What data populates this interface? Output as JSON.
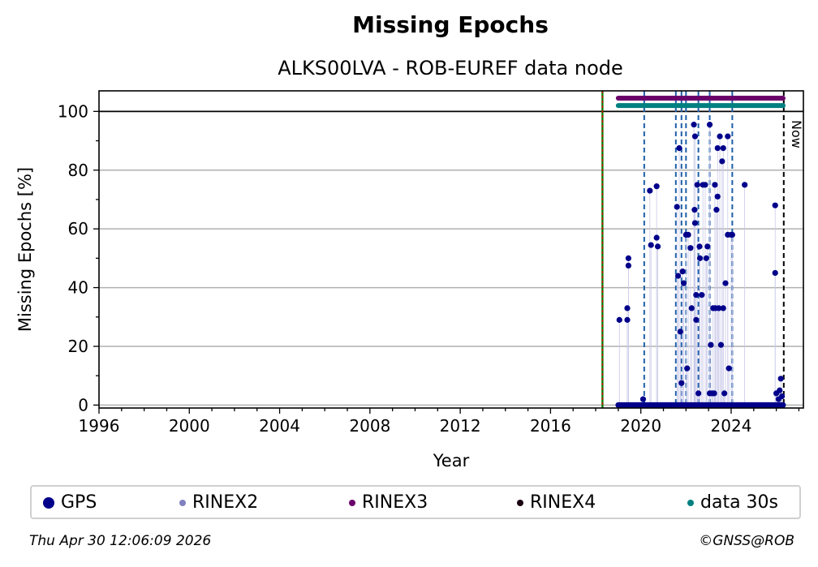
{
  "title": "Missing Epochs",
  "subtitle": "ALKS00LVA - ROB-EUREF data node",
  "footer": {
    "timestamp": "Thu Apr 30 12:06:09 2026",
    "copyright": "©GNSS@ROB"
  },
  "now_label": "Now",
  "legend": [
    {
      "label": "GPS",
      "color": "#00008b"
    },
    {
      "label": "RINEX2",
      "color": "#8080c0"
    },
    {
      "label": "RINEX3",
      "color": "#6b006b"
    },
    {
      "label": "RINEX4",
      "color": "#1a0010"
    },
    {
      "label": "data 30s",
      "color": "#008080"
    }
  ],
  "chart_data": {
    "type": "scatter",
    "title": "Missing Epochs",
    "subtitle": "ALKS00LVA - ROB-EUREF data node",
    "xlabel": "Year",
    "ylabel": "Missing Epochs [%]",
    "xlim": [
      1996,
      2027.2
    ],
    "ylim": [
      -1,
      107
    ],
    "xticks": [
      1996,
      2000,
      2004,
      2008,
      2012,
      2016,
      2020,
      2024
    ],
    "yticks": [
      0,
      20,
      40,
      60,
      80,
      100
    ],
    "grid": "y",
    "legend_position": "bottom",
    "reference_line_y": 100,
    "station_install_year": 2018.3,
    "now_year": 2026.33,
    "equipment_change_years": [
      2020.15,
      2021.55,
      2021.8,
      2022.0,
      2022.55,
      2023.05,
      2024.05
    ],
    "bars": [
      {
        "name": "RINEX3",
        "color": "#6b006b",
        "y": 104.5,
        "x_start": 2019.0,
        "x_end": 2026.3
      },
      {
        "name": "data 30s",
        "color": "#008080",
        "y": 102,
        "x_start": 2019.0,
        "x_end": 2026.3
      }
    ],
    "series": [
      {
        "name": "GPS",
        "color": "#00008b",
        "baseline": {
          "y": 0,
          "x_start": 2019.0,
          "x_end": 2026.3
        },
        "points": [
          [
            2019.05,
            29
          ],
          [
            2019.4,
            29
          ],
          [
            2019.4,
            33
          ],
          [
            2019.45,
            50
          ],
          [
            2019.45,
            47.5
          ],
          [
            2020.1,
            2
          ],
          [
            2020.4,
            73
          ],
          [
            2020.45,
            54.5
          ],
          [
            2020.7,
            74.5
          ],
          [
            2020.7,
            57
          ],
          [
            2020.75,
            54
          ],
          [
            2021.6,
            67.5
          ],
          [
            2021.65,
            44
          ],
          [
            2021.7,
            87.5
          ],
          [
            2021.75,
            25
          ],
          [
            2021.8,
            7.5
          ],
          [
            2021.85,
            45.5
          ],
          [
            2021.9,
            41.5
          ],
          [
            2022.0,
            58
          ],
          [
            2022.05,
            12.5
          ],
          [
            2022.1,
            58
          ],
          [
            2022.2,
            53.5
          ],
          [
            2022.25,
            33
          ],
          [
            2022.35,
            95.5
          ],
          [
            2022.38,
            66.5
          ],
          [
            2022.4,
            62
          ],
          [
            2022.4,
            91.5
          ],
          [
            2022.45,
            37.5
          ],
          [
            2022.45,
            29
          ],
          [
            2022.5,
            75
          ],
          [
            2022.55,
            4
          ],
          [
            2022.6,
            54
          ],
          [
            2022.62,
            50
          ],
          [
            2022.7,
            37.5
          ],
          [
            2022.75,
            75
          ],
          [
            2022.85,
            75
          ],
          [
            2022.9,
            50
          ],
          [
            2022.95,
            54
          ],
          [
            2023.05,
            4
          ],
          [
            2023.05,
            95.5
          ],
          [
            2023.1,
            20.5
          ],
          [
            2023.15,
            4
          ],
          [
            2023.2,
            33
          ],
          [
            2023.25,
            4
          ],
          [
            2023.28,
            75
          ],
          [
            2023.3,
            33
          ],
          [
            2023.35,
            66.5
          ],
          [
            2023.4,
            71
          ],
          [
            2023.4,
            87.5
          ],
          [
            2023.45,
            33
          ],
          [
            2023.5,
            91.5
          ],
          [
            2023.55,
            20.5
          ],
          [
            2023.6,
            83
          ],
          [
            2023.65,
            87.5
          ],
          [
            2023.65,
            33
          ],
          [
            2023.7,
            4
          ],
          [
            2023.75,
            41.5
          ],
          [
            2023.85,
            91.5
          ],
          [
            2023.85,
            58
          ],
          [
            2023.9,
            12.5
          ],
          [
            2024.0,
            58
          ],
          [
            2024.05,
            58
          ],
          [
            2024.6,
            75
          ],
          [
            2025.95,
            68
          ],
          [
            2025.95,
            45
          ],
          [
            2026.0,
            4
          ],
          [
            2026.1,
            2
          ],
          [
            2026.15,
            5
          ],
          [
            2026.2,
            9
          ],
          [
            2026.25,
            3
          ]
        ]
      }
    ]
  }
}
